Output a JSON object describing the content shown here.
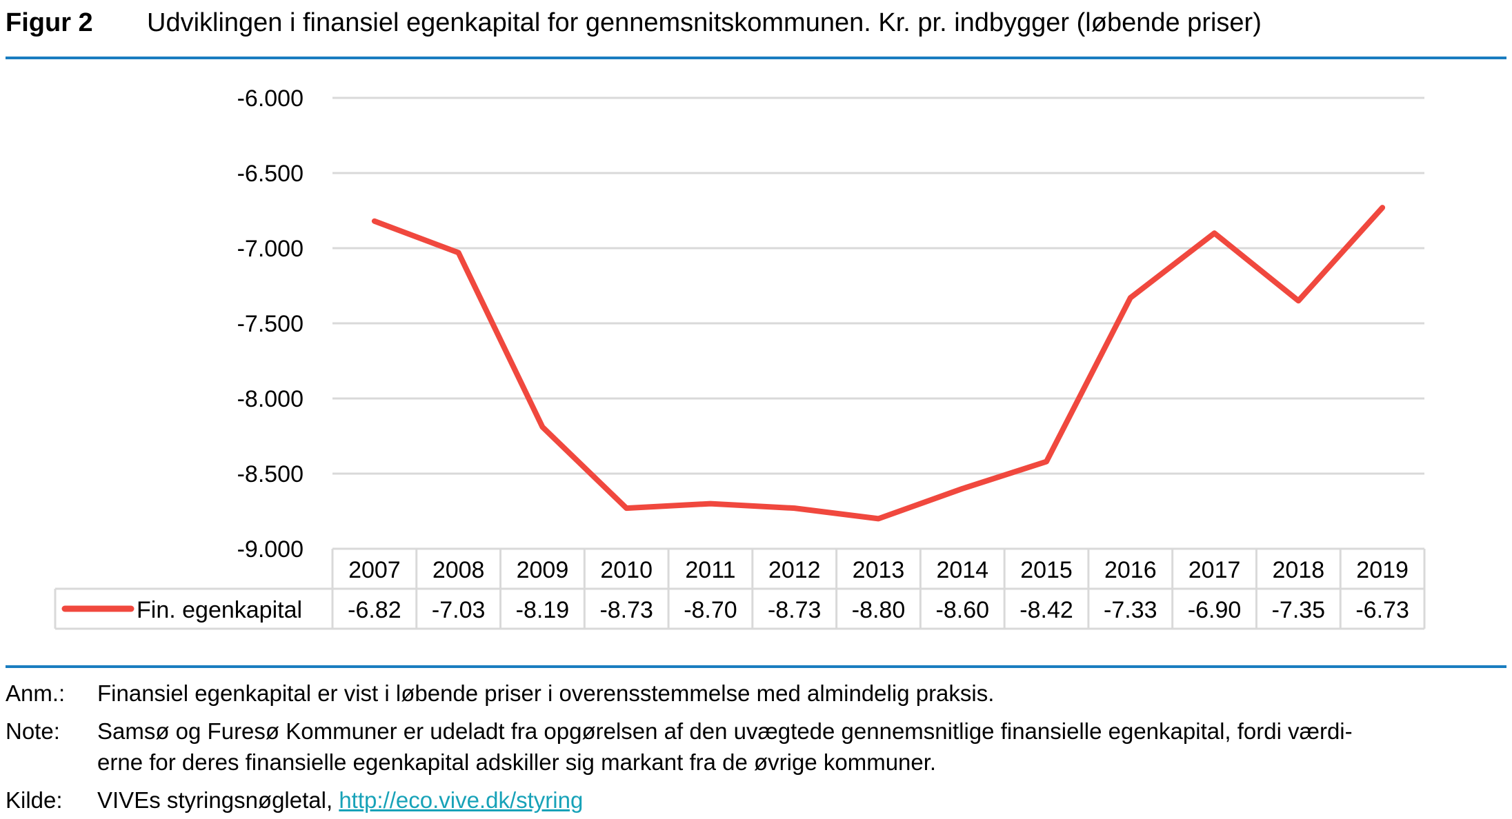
{
  "figure": {
    "label": "Figur 2",
    "title": "Udviklingen i finansiel egenkapital for gennemsnitskommunen. Kr. pr. indbygger (løbende priser)"
  },
  "chart_data": {
    "type": "line",
    "categories": [
      "2007",
      "2008",
      "2009",
      "2010",
      "2011",
      "2012",
      "2013",
      "2014",
      "2015",
      "2016",
      "2017",
      "2018",
      "2019"
    ],
    "series": [
      {
        "name": "Fin. egenkapital",
        "values": [
          -6820,
          -7030,
          -8190,
          -8730,
          -8700,
          -8730,
          -8800,
          -8600,
          -8420,
          -7330,
          -6900,
          -7350,
          -6730
        ],
        "table_labels": [
          "-6.82",
          "-7.03",
          "-8.19",
          "-8.73",
          "-8.70",
          "-8.73",
          "-8.80",
          "-8.60",
          "-8.42",
          "-7.33",
          "-6.90",
          "-7.35",
          "-6.73"
        ],
        "color": "#f0483e"
      }
    ],
    "ylim": [
      -9000,
      -6000
    ],
    "y_ticks": [
      -6000,
      -6500,
      -7000,
      -7500,
      -8000,
      -8500,
      -9000
    ],
    "y_tick_labels": [
      "-6.000",
      "-6.500",
      "-7.000",
      "-7.500",
      "-8.000",
      "-8.500",
      "-9.000"
    ],
    "grid": true,
    "legend": "data-table"
  },
  "notes": {
    "anm_key": "Anm.:",
    "anm_text": "Finansiel egenkapital er vist i løbende priser i overensstemmelse med almindelig praksis.",
    "note_key": "Note:",
    "note_text_line1": "Samsø og Furesø Kommuner er udeladt fra opgørelsen af den uvægtede gennemsnitlige finansielle egenkapital, fordi værdi-",
    "note_text_line2": "erne for deres finansielle egenkapital adskiller sig markant fra de øvrige kommuner.",
    "kilde_key": "Kilde:",
    "kilde_text": "VIVEs styringsnøgletal, ",
    "kilde_link": "http://eco.vive.dk/styring"
  },
  "colors": {
    "accent_rule": "#1a7dc0",
    "gridline": "#d9d9d9",
    "series_line": "#f0483e",
    "link": "#17a2b8"
  }
}
